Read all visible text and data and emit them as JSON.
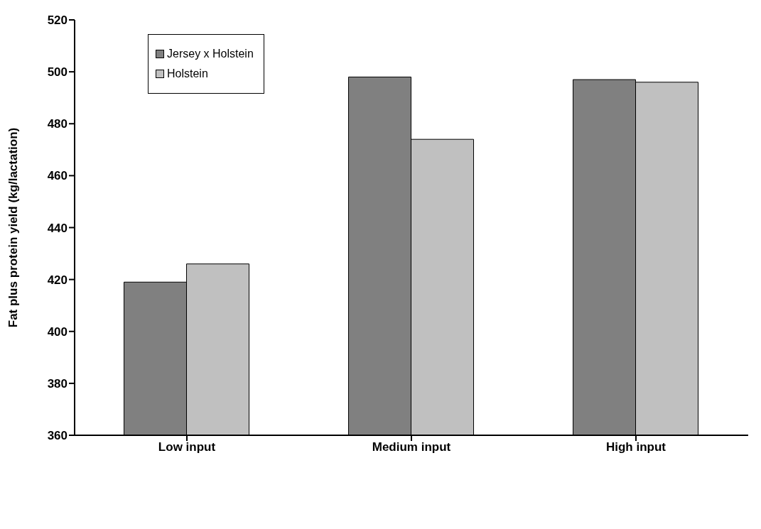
{
  "chart_data": {
    "type": "bar",
    "ylabel": "Fat plus protein yield (kg/lactation)",
    "categories": [
      "Low input",
      "Medium input",
      "High input"
    ],
    "series": [
      {
        "name": "Jersey x Holstein",
        "color": "#808080",
        "values": [
          419,
          498,
          497
        ]
      },
      {
        "name": "Holstein",
        "color": "#c0c0c0",
        "values": [
          426,
          474,
          496
        ]
      }
    ],
    "ylim": [
      360,
      520
    ],
    "yticks": [
      360,
      380,
      400,
      420,
      440,
      460,
      480,
      500,
      520
    ],
    "grid": false,
    "legend": "top left"
  }
}
